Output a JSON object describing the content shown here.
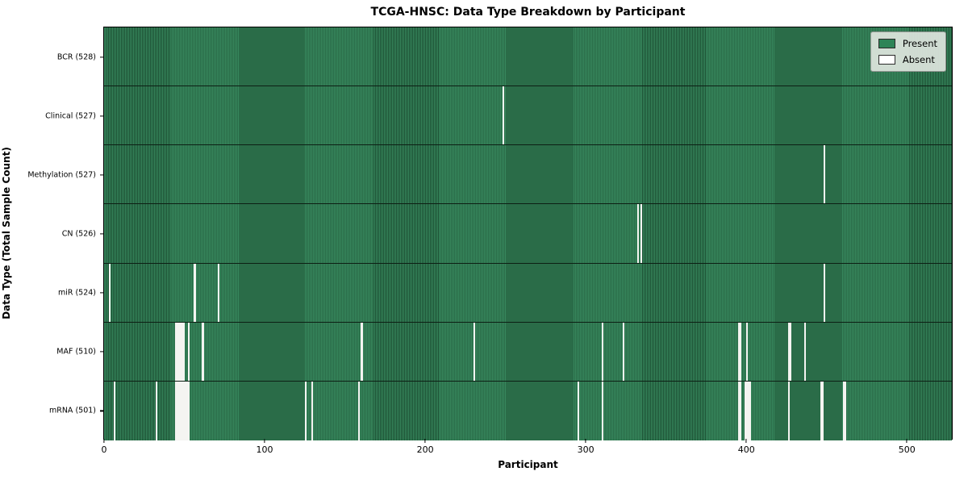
{
  "chart_data": {
    "type": "heatmap",
    "title": "TCGA-HNSC: Data Type Breakdown by Participant",
    "xlabel": "Participant",
    "ylabel": "Data Type (Total Sample Count)",
    "n_participants": 528,
    "x_ticks": [
      0,
      100,
      200,
      300,
      400,
      500
    ],
    "present_color": "#2e8457",
    "absent_color": "#ffffff",
    "legend": [
      {
        "label": "Present",
        "color": "#2e8457"
      },
      {
        "label": "Absent",
        "color": "#ffffff"
      }
    ],
    "rows": [
      {
        "name": "BCR",
        "label": "BCR (528)",
        "total": 528,
        "absent": []
      },
      {
        "name": "Clinical",
        "label": "Clinical (527)",
        "total": 527,
        "absent": [
          248
        ]
      },
      {
        "name": "Methylation",
        "label": "Methylation (527)",
        "total": 527,
        "absent": [
          448
        ]
      },
      {
        "name": "CN",
        "label": "CN (526)",
        "total": 526,
        "absent": [
          332,
          334
        ]
      },
      {
        "name": "miR",
        "label": "miR (524)",
        "total": 524,
        "absent": [
          3,
          56,
          71,
          448
        ]
      },
      {
        "name": "MAF",
        "label": "MAF (510)",
        "total": 510,
        "absent": [
          44,
          45,
          46,
          47,
          48,
          49,
          52,
          61,
          160,
          230,
          310,
          323,
          395,
          396,
          400,
          426,
          427,
          436
        ]
      },
      {
        "name": "mRNA",
        "label": "mRNA (501)",
        "total": 501,
        "absent": [
          6,
          32,
          44,
          45,
          46,
          47,
          48,
          49,
          50,
          51,
          52,
          125,
          129,
          158,
          295,
          310,
          395,
          396,
          399,
          400,
          401,
          402,
          426,
          446,
          447,
          460,
          461
        ]
      }
    ]
  }
}
